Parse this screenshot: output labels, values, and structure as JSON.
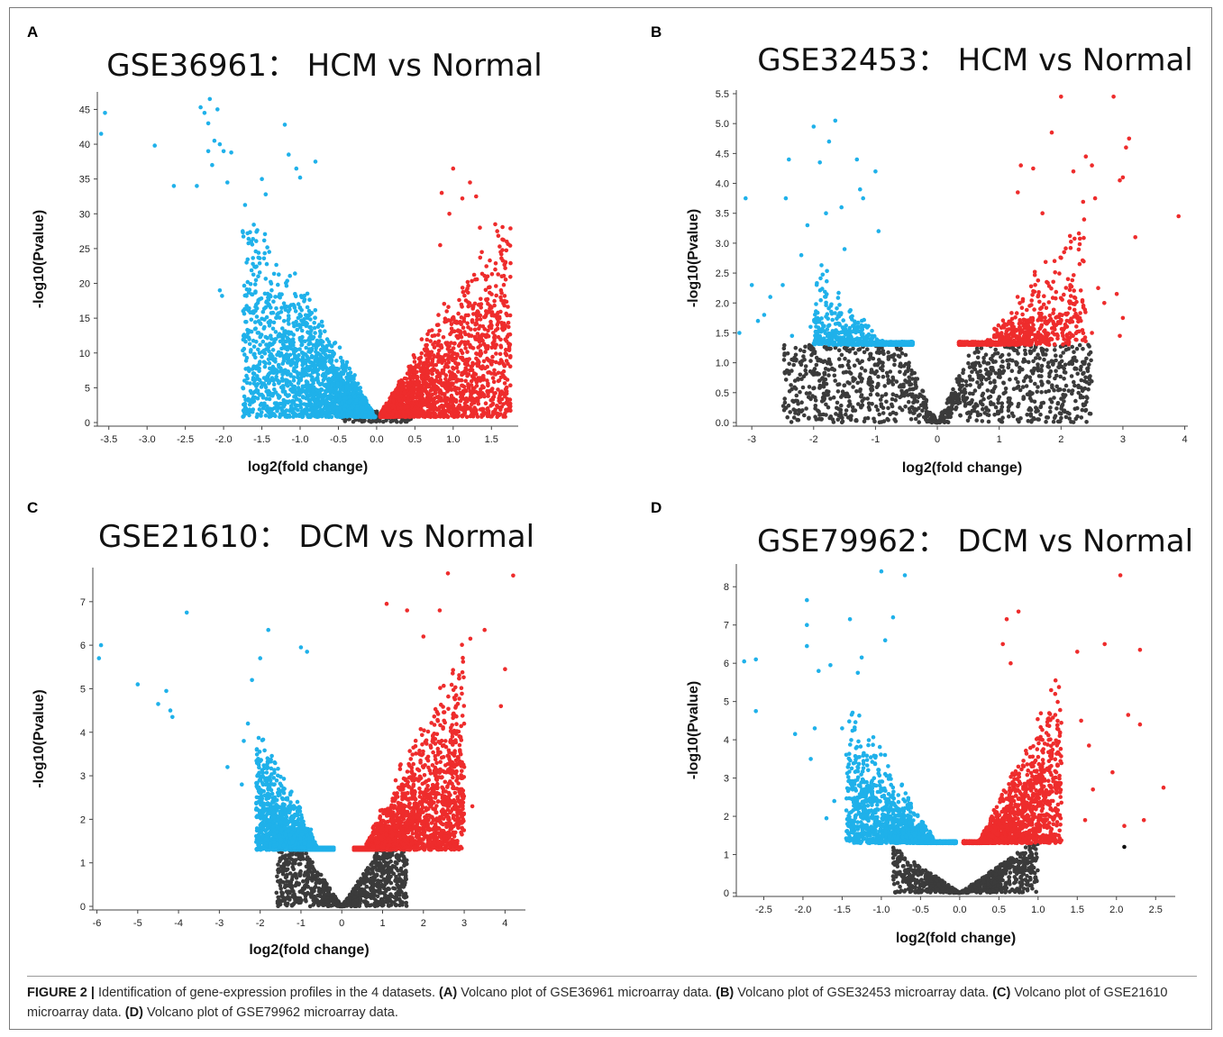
{
  "colors": {
    "down": "#1fb1ea",
    "up": "#ee2c2c",
    "ns": "#3b3b3b"
  },
  "chart_data": [
    {
      "panel": "A",
      "type": "scatter",
      "title": "GSE36961： HCM vs Normal",
      "xlabel": "log2(fold change)",
      "ylabel": "-log10(Pvalue)",
      "xlim": [
        -3.65,
        1.85
      ],
      "ylim": [
        0,
        47
      ],
      "xticks": [
        -3.5,
        -3.0,
        -2.5,
        -2.0,
        -1.5,
        -1.0,
        -0.5,
        0.0,
        0.5,
        1.0,
        1.5
      ],
      "yticks": [
        0,
        5,
        10,
        15,
        20,
        25,
        30,
        35,
        40,
        45
      ],
      "xtick_labels": [
        "-3.5",
        "-3.0",
        "-2.5",
        "-2.0",
        "-1.5",
        "-1.0",
        "-0.5",
        "0.0",
        "0.5",
        "1.0",
        "1.5"
      ],
      "ytick_labels": [
        "0",
        "5",
        "10",
        "15",
        "20",
        "25",
        "30",
        "35",
        "40",
        "45"
      ],
      "threshold": 1.3,
      "down_outliers": [
        [
          -3.55,
          44.5
        ],
        [
          -3.6,
          41.5
        ],
        [
          -2.9,
          39.8
        ],
        [
          -2.65,
          34
        ],
        [
          -2.35,
          34
        ],
        [
          -2.3,
          45.3
        ],
        [
          -2.25,
          44.5
        ],
        [
          -2.2,
          43
        ],
        [
          -2.18,
          46.5
        ],
        [
          -2.12,
          40.5
        ],
        [
          -2.08,
          45
        ],
        [
          -2.15,
          37
        ],
        [
          -2.05,
          40
        ],
        [
          -2.0,
          39
        ],
        [
          -1.95,
          34.5
        ],
        [
          -2.2,
          39
        ],
        [
          -1.9,
          38.8
        ],
        [
          -2.05,
          19
        ],
        [
          -2.02,
          18.2
        ],
        [
          -1.75,
          27.5
        ],
        [
          -1.7,
          18.2
        ],
        [
          -1.55,
          10.5
        ],
        [
          -1.45,
          12.3
        ],
        [
          -1.2,
          42.8
        ],
        [
          -1.15,
          38.5
        ],
        [
          -1.05,
          36.5
        ],
        [
          -1.0,
          35.2
        ],
        [
          -0.8,
          37.5
        ],
        [
          -1.5,
          35
        ],
        [
          -1.45,
          32.8
        ]
      ],
      "up_outliers": [
        [
          1.7,
          26
        ],
        [
          1.62,
          24.5
        ],
        [
          1.55,
          28.5
        ],
        [
          1.55,
          22
        ],
        [
          1.62,
          18
        ],
        [
          1.5,
          16.5
        ],
        [
          1.45,
          21
        ],
        [
          1.22,
          34.5
        ],
        [
          1.3,
          32.5
        ],
        [
          1.0,
          36.5
        ],
        [
          0.85,
          33
        ],
        [
          0.83,
          25.5
        ],
        [
          0.95,
          30
        ],
        [
          1.35,
          28
        ],
        [
          0.6,
          2.5
        ],
        [
          1.12,
          32.2
        ]
      ],
      "down_cloud": {
        "n": 2300,
        "xmin": -1.75,
        "xmax": -0.02,
        "ymax_scale": 33,
        "xref": 1.6,
        "ymin": 0.8
      },
      "up_cloud": {
        "n": 2100,
        "xmin": 0.05,
        "xmax": 1.75,
        "ymax_scale": 28,
        "xref": 1.45,
        "ymin": 0.8
      },
      "ns_cloud": {
        "n": 120,
        "xmin": -0.45,
        "xmax": 0.45,
        "ymax": 1.6
      }
    },
    {
      "panel": "B",
      "type": "scatter",
      "title": "GSE32453： HCM vs Normal",
      "xlabel": "log2(fold change)",
      "ylabel": "-log10(Pvalue)",
      "xlim": [
        -3.25,
        4.05
      ],
      "ylim": [
        0,
        5.5
      ],
      "xticks": [
        -3,
        -2,
        -1,
        0,
        1,
        2,
        3,
        4
      ],
      "yticks": [
        0,
        0.5,
        1.0,
        1.5,
        2.0,
        2.5,
        3.0,
        3.5,
        4.0,
        4.5,
        5.0,
        5.5
      ],
      "xtick_labels": [
        "-3",
        "-2",
        "-1",
        "0",
        "1",
        "2",
        "3",
        "4"
      ],
      "ytick_labels": [
        "0.0",
        "0.5",
        "1.0",
        "1.5",
        "2.0",
        "2.5",
        "3.0",
        "3.5",
        "4.0",
        "4.5",
        "5.0",
        "5.5"
      ],
      "threshold": 1.3,
      "down_outliers": [
        [
          -3.2,
          1.5
        ],
        [
          -3.1,
          3.75
        ],
        [
          -3.0,
          2.3
        ],
        [
          -2.9,
          1.7
        ],
        [
          -2.8,
          1.8
        ],
        [
          -2.7,
          2.1
        ],
        [
          -2.5,
          2.3
        ],
        [
          -2.45,
          3.75
        ],
        [
          -2.4,
          4.4
        ],
        [
          -2.2,
          2.8
        ],
        [
          -2.1,
          3.3
        ],
        [
          -2.0,
          4.95
        ],
        [
          -1.9,
          4.35
        ],
        [
          -1.8,
          3.5
        ],
        [
          -1.75,
          4.7
        ],
        [
          -1.65,
          5.05
        ],
        [
          -1.55,
          3.6
        ],
        [
          -1.5,
          2.9
        ],
        [
          -1.3,
          4.4
        ],
        [
          -1.25,
          3.9
        ],
        [
          -1.2,
          3.75
        ],
        [
          -1.0,
          4.2
        ],
        [
          -0.95,
          3.2
        ],
        [
          -2.35,
          1.45
        ],
        [
          -2.05,
          1.6
        ]
      ],
      "up_outliers": [
        [
          1.3,
          3.85
        ],
        [
          1.35,
          4.3
        ],
        [
          1.55,
          4.25
        ],
        [
          1.7,
          3.5
        ],
        [
          1.85,
          4.85
        ],
        [
          2.0,
          5.45
        ],
        [
          2.2,
          4.2
        ],
        [
          2.4,
          4.45
        ],
        [
          2.5,
          4.3
        ],
        [
          2.55,
          3.75
        ],
        [
          2.85,
          5.45
        ],
        [
          2.95,
          4.05
        ],
        [
          3.0,
          4.1
        ],
        [
          3.05,
          4.6
        ],
        [
          3.1,
          4.75
        ],
        [
          3.2,
          3.1
        ],
        [
          3.9,
          3.45
        ],
        [
          2.9,
          2.15
        ],
        [
          2.95,
          1.45
        ],
        [
          3.0,
          1.75
        ],
        [
          2.7,
          2.0
        ],
        [
          2.6,
          2.25
        ],
        [
          2.5,
          1.5
        ],
        [
          2.3,
          2.65
        ],
        [
          2.15,
          2.3
        ],
        [
          2.05,
          2.85
        ]
      ],
      "down_cloud": {
        "n": 900,
        "xmin": -2.0,
        "xmax": -0.4,
        "ymax_scale": 2.9,
        "xref": 2.0,
        "ymin": 1.3,
        "ymax": 3.0
      },
      "up_cloud": {
        "n": 900,
        "xmin": 0.35,
        "xmax": 2.4,
        "ymax_scale": 3.7,
        "xref": 2.3,
        "ymin": 1.3,
        "ymax": 3.9
      },
      "ns_cloud": {
        "n": 1100,
        "xmin": -2.5,
        "xmax": 2.5,
        "ymax": 1.3,
        "vshape": 0.62
      }
    },
    {
      "panel": "C",
      "type": "scatter",
      "title": "GSE21610： DCM vs Normal",
      "xlabel": "log2(fold change)",
      "ylabel": "-log10(Pvalue)",
      "xlim": [
        -6.1,
        4.5
      ],
      "ylim": [
        0,
        7.7
      ],
      "xticks": [
        -6,
        -5,
        -4,
        -3,
        -2,
        -1,
        0,
        1,
        2,
        3,
        4
      ],
      "yticks": [
        0,
        1,
        2,
        3,
        4,
        5,
        6,
        7
      ],
      "xtick_labels": [
        "-6",
        "-5",
        "-4",
        "-3",
        "-2",
        "-1",
        "0",
        "1",
        "2",
        "3",
        "4"
      ],
      "ytick_labels": [
        "0",
        "1",
        "2",
        "3",
        "4",
        "5",
        "6",
        "7"
      ],
      "threshold": 1.3,
      "down_outliers": [
        [
          -5.9,
          6.0
        ],
        [
          -5.95,
          5.7
        ],
        [
          -5.0,
          5.1
        ],
        [
          -4.5,
          4.65
        ],
        [
          -4.3,
          4.95
        ],
        [
          -4.2,
          4.5
        ],
        [
          -4.15,
          4.35
        ],
        [
          -3.8,
          6.75
        ],
        [
          -2.8,
          3.2
        ],
        [
          -1.8,
          6.35
        ],
        [
          -2.0,
          5.7
        ],
        [
          -2.2,
          5.2
        ],
        [
          -2.3,
          4.2
        ],
        [
          -2.4,
          3.8
        ],
        [
          -1.0,
          5.95
        ],
        [
          -0.85,
          5.85
        ],
        [
          -2.45,
          2.8
        ]
      ],
      "up_outliers": [
        [
          1.1,
          6.95
        ],
        [
          1.6,
          6.8
        ],
        [
          2.0,
          6.2
        ],
        [
          2.4,
          6.8
        ],
        [
          2.6,
          7.65
        ],
        [
          3.15,
          6.15
        ],
        [
          3.5,
          6.35
        ],
        [
          4.2,
          7.6
        ],
        [
          4.0,
          5.45
        ],
        [
          3.9,
          4.6
        ],
        [
          3.2,
          2.3
        ],
        [
          2.5,
          3.7
        ],
        [
          2.8,
          4.6
        ],
        [
          3.0,
          3.2
        ]
      ],
      "down_cloud": {
        "n": 2400,
        "xmin": -2.1,
        "xmax": -0.2,
        "ymax_scale": 4.3,
        "xref": 2.0,
        "ymin": 1.3,
        "ymax": 4.3
      },
      "up_cloud": {
        "n": 2600,
        "xmin": 0.3,
        "xmax": 3.0,
        "ymax_scale": 6.0,
        "xref": 2.8,
        "ymin": 1.3,
        "ymax": 6.3
      },
      "ns_cloud": {
        "n": 900,
        "xmin": -1.6,
        "xmax": 1.6,
        "ymax": 1.3,
        "vshape": 1.0
      }
    },
    {
      "panel": "D",
      "type": "scatter",
      "title": "GSE79962： DCM vs Normal",
      "xlabel": "log2(fold change)",
      "ylabel": "-log10(Pvalue)",
      "xlim": [
        -2.85,
        2.75
      ],
      "ylim": [
        0,
        8.5
      ],
      "xticks": [
        -2.5,
        -2.0,
        -1.5,
        -1.0,
        -0.5,
        0.0,
        0.5,
        1.0,
        1.5,
        2.0,
        2.5
      ],
      "yticks": [
        0,
        1,
        2,
        3,
        4,
        5,
        6,
        7,
        8
      ],
      "xtick_labels": [
        "-2.5",
        "-2.0",
        "-1.5",
        "-1.0",
        "-0.5",
        "0.0",
        "0.5",
        "1.0",
        "1.5",
        "2.0",
        "2.5"
      ],
      "ytick_labels": [
        "0",
        "1",
        "2",
        "3",
        "4",
        "5",
        "6",
        "7",
        "8"
      ],
      "threshold": 1.3,
      "down_outliers": [
        [
          -2.75,
          6.05
        ],
        [
          -2.6,
          6.1
        ],
        [
          -2.6,
          4.75
        ],
        [
          -2.1,
          4.15
        ],
        [
          -1.95,
          7.65
        ],
        [
          -1.95,
          7.0
        ],
        [
          -1.95,
          6.45
        ],
        [
          -1.8,
          5.8
        ],
        [
          -1.65,
          5.95
        ],
        [
          -1.5,
          4.3
        ],
        [
          -1.4,
          7.15
        ],
        [
          -1.3,
          5.75
        ],
        [
          -1.25,
          6.15
        ],
        [
          -1.0,
          8.4
        ],
        [
          -0.85,
          7.2
        ],
        [
          -0.7,
          8.3
        ],
        [
          -0.95,
          6.6
        ],
        [
          -1.9,
          3.5
        ],
        [
          -1.85,
          4.3
        ],
        [
          -1.6,
          2.4
        ],
        [
          -1.7,
          1.95
        ]
      ],
      "up_outliers": [
        [
          0.55,
          6.5
        ],
        [
          0.6,
          7.15
        ],
        [
          0.75,
          7.35
        ],
        [
          0.65,
          6.0
        ],
        [
          1.5,
          6.3
        ],
        [
          1.85,
          6.5
        ],
        [
          2.05,
          8.3
        ],
        [
          2.15,
          4.65
        ],
        [
          2.3,
          6.35
        ],
        [
          2.6,
          2.75
        ],
        [
          2.35,
          1.9
        ],
        [
          2.1,
          1.75
        ],
        [
          1.6,
          1.9
        ],
        [
          1.65,
          3.85
        ],
        [
          1.7,
          2.7
        ],
        [
          1.55,
          4.5
        ],
        [
          1.95,
          3.15
        ],
        [
          2.3,
          4.4
        ]
      ],
      "ns_outliers": [
        [
          2.1,
          1.2
        ]
      ],
      "down_cloud": {
        "n": 1900,
        "xmin": -1.45,
        "xmax": -0.05,
        "ymax_scale": 5.3,
        "xref": 1.4,
        "ymin": 1.3,
        "ymax": 5.8
      },
      "up_cloud": {
        "n": 2000,
        "xmin": 0.05,
        "xmax": 1.3,
        "ymax_scale": 5.8,
        "xref": 1.2,
        "ymin": 1.3,
        "ymax": 6.1
      },
      "ns_cloud": {
        "n": 750,
        "xmin": -0.85,
        "xmax": 1.0,
        "ymax": 1.3,
        "vshape": 1.0
      }
    }
  ],
  "caption": {
    "label": "FIGURE 2 |",
    "parts": [
      {
        "text": " Identification of gene-expression profiles in the 4 datasets. ",
        "bold": false
      },
      {
        "text": "(A)",
        "bold": true
      },
      {
        "text": " Volcano plot of GSE36961 microarray data. ",
        "bold": false
      },
      {
        "text": "(B)",
        "bold": true
      },
      {
        "text": " Volcano plot of GSE32453 microarray data. ",
        "bold": false
      },
      {
        "text": "(C)",
        "bold": true
      },
      {
        "text": " Volcano plot of GSE21610 microarray data. ",
        "bold": false
      },
      {
        "text": "(D)",
        "bold": true
      },
      {
        "text": " Volcano plot of GSE79962 microarray data.",
        "bold": false
      }
    ]
  }
}
